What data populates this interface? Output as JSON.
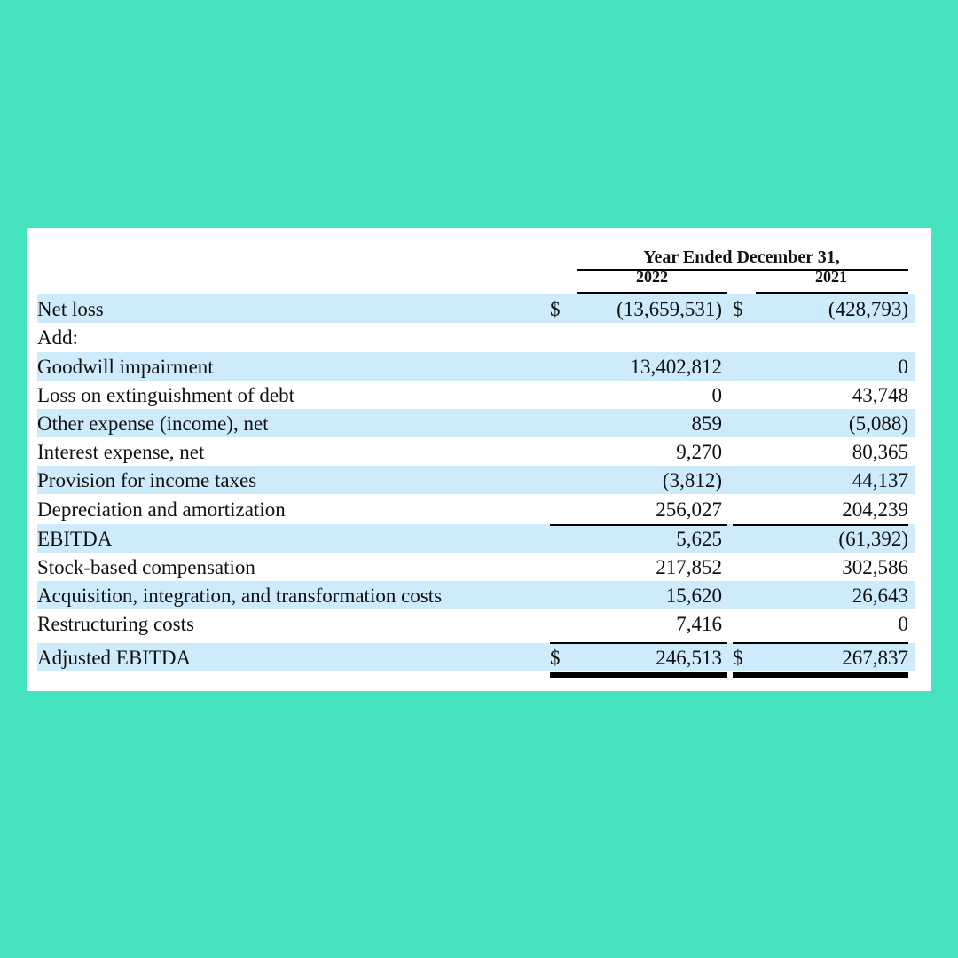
{
  "table": {
    "period_header": "Year Ended December 31,",
    "col_2022": "2022",
    "col_2021": "2021",
    "rows": [
      {
        "label": "Net loss",
        "cur_2022": "$",
        "v2022": "(13,659,531)",
        "cur_2021": "$",
        "v2021": "(428,793)"
      },
      {
        "label": "Add:",
        "cur_2022": "",
        "v2022": "",
        "cur_2021": "",
        "v2021": ""
      },
      {
        "label": "Goodwill impairment",
        "cur_2022": "",
        "v2022": "13,402,812",
        "cur_2021": "",
        "v2021": "0"
      },
      {
        "label": "Loss on extinguishment of debt",
        "cur_2022": "",
        "v2022": "0",
        "cur_2021": "",
        "v2021": "43,748"
      },
      {
        "label": "Other expense (income), net",
        "cur_2022": "",
        "v2022": "859",
        "cur_2021": "",
        "v2021": "(5,088)"
      },
      {
        "label": "Interest expense, net",
        "cur_2022": "",
        "v2022": "9,270",
        "cur_2021": "",
        "v2021": "80,365"
      },
      {
        "label": "Provision for income taxes",
        "cur_2022": "",
        "v2022": "(3,812)",
        "cur_2021": "",
        "v2021": "44,137"
      },
      {
        "label": "Depreciation and amortization",
        "cur_2022": "",
        "v2022": "256,027",
        "cur_2021": "",
        "v2021": "204,239"
      },
      {
        "label": "EBITDA",
        "cur_2022": "",
        "v2022": "5,625",
        "cur_2021": "",
        "v2021": "(61,392)"
      },
      {
        "label": "Stock-based compensation",
        "cur_2022": "",
        "v2022": "217,852",
        "cur_2021": "",
        "v2021": "302,586"
      },
      {
        "label": "Acquisition, integration, and transformation costs",
        "cur_2022": "",
        "v2022": "15,620",
        "cur_2021": "",
        "v2021": "26,643"
      },
      {
        "label": "Restructuring costs",
        "cur_2022": "",
        "v2022": "7,416",
        "cur_2021": "",
        "v2021": "0"
      },
      {
        "label": "Adjusted EBITDA",
        "cur_2022": "$",
        "v2022": "246,513",
        "cur_2021": "$",
        "v2021": "267,837"
      }
    ]
  }
}
